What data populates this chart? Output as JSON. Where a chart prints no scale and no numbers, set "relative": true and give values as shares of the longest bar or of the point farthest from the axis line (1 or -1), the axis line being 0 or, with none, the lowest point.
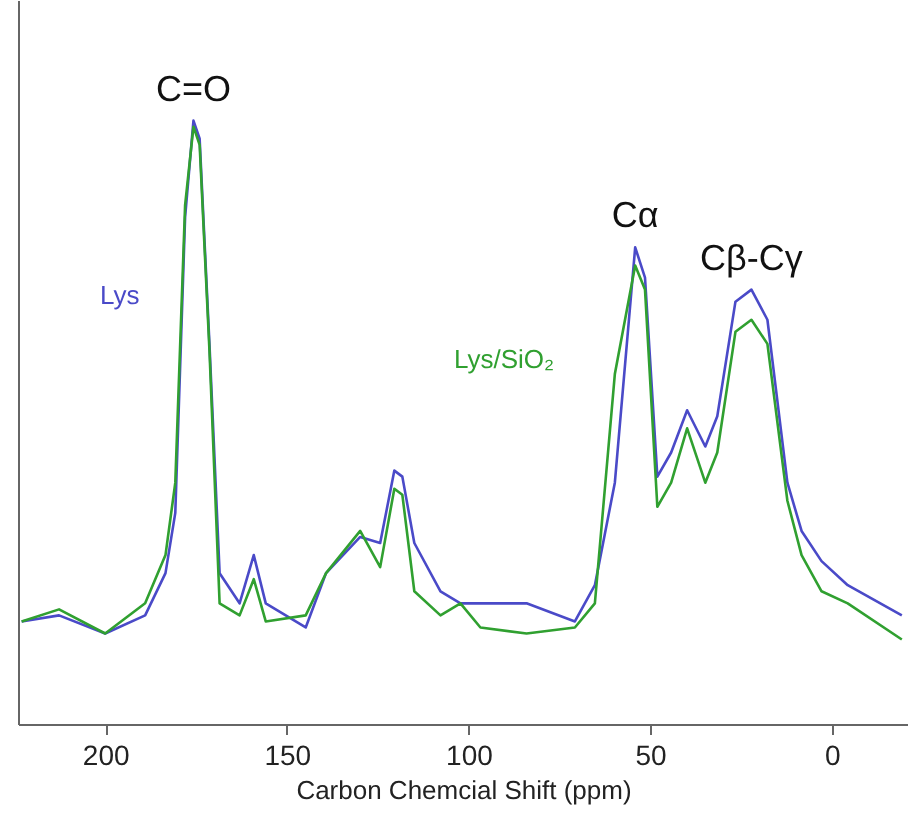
{
  "chart_data": {
    "type": "line",
    "xlabel": "Carbon Chemcial Shift (ppm)",
    "relative": true,
    "xlim": [
      224,
      -21
    ],
    "xticks": [
      200,
      150,
      100,
      50,
      0
    ],
    "grid": false,
    "line_style": "solid",
    "marker": "none",
    "x": [
      223,
      212.7,
      200,
      189,
      183.4,
      180.7,
      178,
      175.7,
      174,
      171.3,
      168.5,
      163,
      159.1,
      155.8,
      144.8,
      139.2,
      129.8,
      124.3,
      120.4,
      118.2,
      114.9,
      107.7,
      102.2,
      96.7,
      84,
      70.7,
      65.2,
      59.7,
      54.1,
      51.4,
      48,
      44.2,
      39.8,
      34.8,
      31.5,
      26.5,
      22.1,
      17.7,
      12.2,
      8.3,
      2.8,
      -4.4,
      -19.3
    ],
    "series": [
      {
        "name": "Lys",
        "color": "#4a4ac8",
        "values": [
          0.17,
          0.18,
          0.15,
          0.18,
          0.25,
          0.35,
          0.84,
          1,
          0.97,
          0.63,
          0.25,
          0.2,
          0.28,
          0.2,
          0.16,
          0.25,
          0.31,
          0.3,
          0.42,
          0.41,
          0.3,
          0.22,
          0.2,
          0.2,
          0.2,
          0.17,
          0.23,
          0.4,
          0.79,
          0.74,
          0.41,
          0.45,
          0.52,
          0.46,
          0.51,
          0.7,
          0.72,
          0.67,
          0.4,
          0.32,
          0.27,
          0.23,
          0.18
        ]
      },
      {
        "name": "Lys/SiO₂",
        "color": "#30a030",
        "values": [
          0.17,
          0.19,
          0.15,
          0.2,
          0.28,
          0.4,
          0.86,
          0.99,
          0.96,
          0.62,
          0.2,
          0.18,
          0.24,
          0.17,
          0.18,
          0.25,
          0.32,
          0.26,
          0.39,
          0.38,
          0.22,
          0.18,
          0.2,
          0.16,
          0.15,
          0.16,
          0.2,
          0.58,
          0.76,
          0.72,
          0.36,
          0.4,
          0.49,
          0.4,
          0.45,
          0.65,
          0.67,
          0.63,
          0.37,
          0.28,
          0.22,
          0.2,
          0.14
        ]
      }
    ],
    "annotations": [
      {
        "text": "C=O",
        "x": 175.7,
        "y": 1
      },
      {
        "text": "Cα",
        "x": 54.1,
        "y": 0.79
      },
      {
        "text": "Cβ-Cγ",
        "x": 22.1,
        "y": 0.72
      }
    ]
  }
}
